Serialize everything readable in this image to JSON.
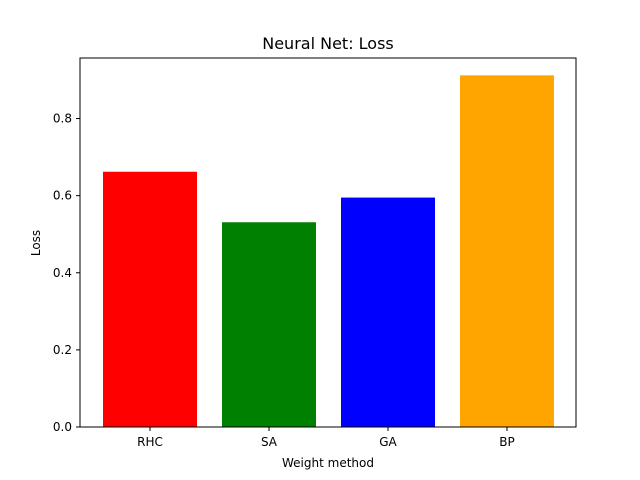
{
  "chart_data": {
    "type": "bar",
    "title": "Neural Net: Loss",
    "xlabel": "Weight method",
    "ylabel": "Loss",
    "categories": [
      "RHC",
      "SA",
      "GA",
      "BP"
    ],
    "values": [
      0.662,
      0.531,
      0.595,
      0.912
    ],
    "colors": [
      "#ff0000",
      "#008000",
      "#0000ff",
      "#ffa500"
    ],
    "ylim": [
      0,
      0.957
    ],
    "yticks": [
      0.0,
      0.2,
      0.4,
      0.6,
      0.8
    ],
    "ytick_labels": [
      "0.0",
      "0.2",
      "0.4",
      "0.6",
      "0.8"
    ],
    "grid": false,
    "legend": "none"
  }
}
